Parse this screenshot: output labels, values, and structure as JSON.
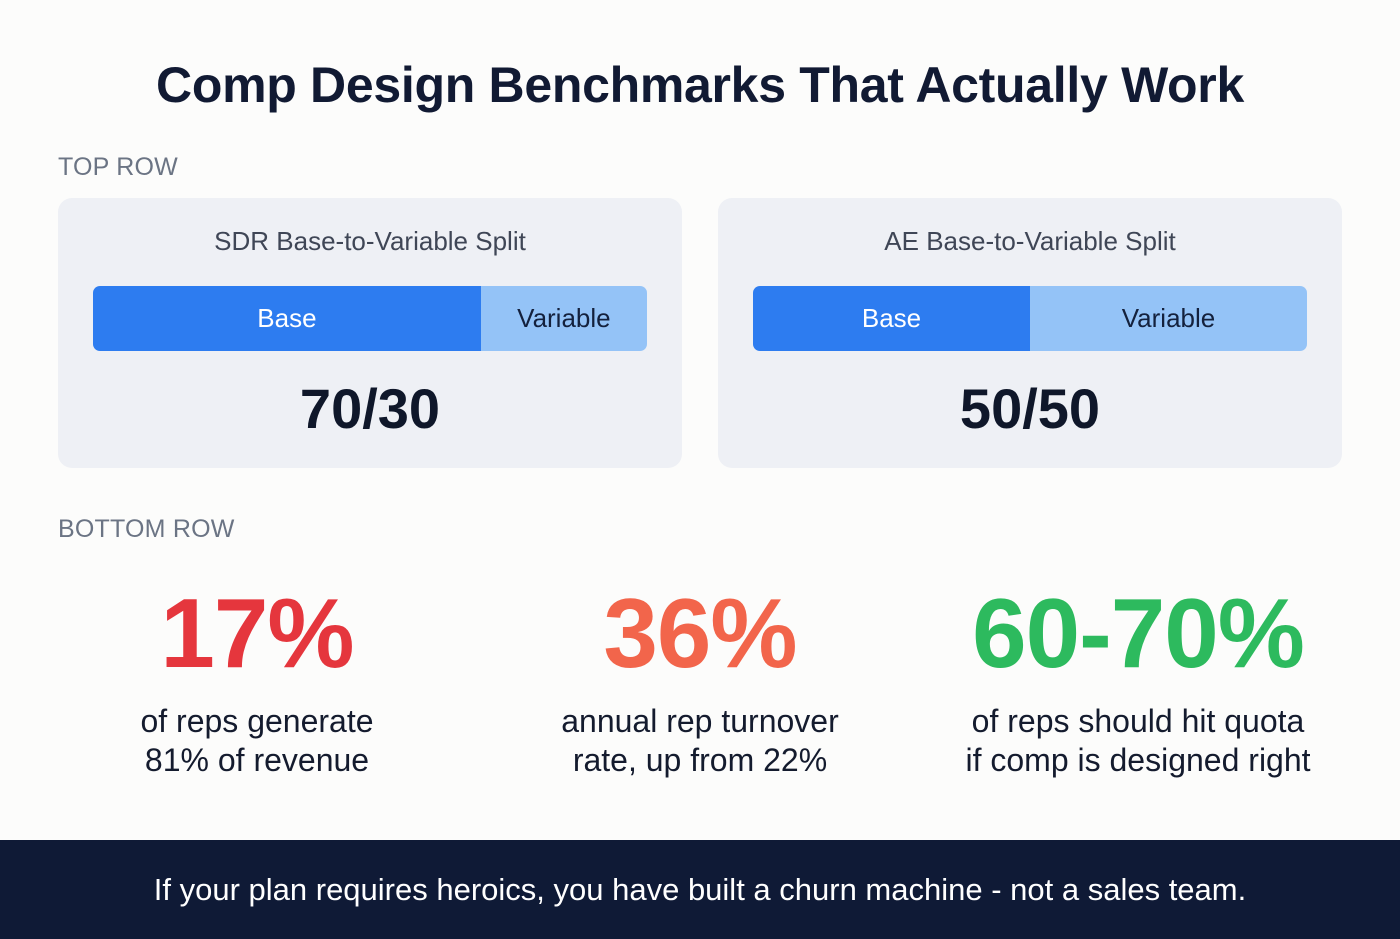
{
  "title": "Comp Design Benchmarks That Actually Work",
  "sections": {
    "top_label": "TOP ROW",
    "bottom_label": "BOTTOM ROW"
  },
  "cards": [
    {
      "title": "SDR Base-to-Variable Split",
      "base_label": "Base",
      "variable_label": "Variable",
      "base_pct": 70,
      "variable_pct": 30,
      "value": "70/30"
    },
    {
      "title": "AE Base-to-Variable Split",
      "base_label": "Base",
      "variable_label": "Variable",
      "base_pct": 50,
      "variable_pct": 50,
      "value": "50/50"
    }
  ],
  "stats": [
    {
      "value": "17%",
      "line1": "of reps generate",
      "line2": "81% of revenue",
      "color": "#e5363d"
    },
    {
      "value": "36%",
      "line1": "annual rep turnover",
      "line2": "rate, up from 22%",
      "color": "#f2654b"
    },
    {
      "value": "60-70%",
      "line1": "of reps should hit quota",
      "line2": "if comp is designed right",
      "color": "#2dba5e"
    }
  ],
  "colors": {
    "base_bar": "#2d7cf0",
    "variable_bar": "#94c3f7",
    "footer_bg": "#0f1a36",
    "card_bg": "#eef0f5"
  },
  "footer": {
    "text": "If your plan requires heroics, you have built a churn machine - not a sales team."
  }
}
